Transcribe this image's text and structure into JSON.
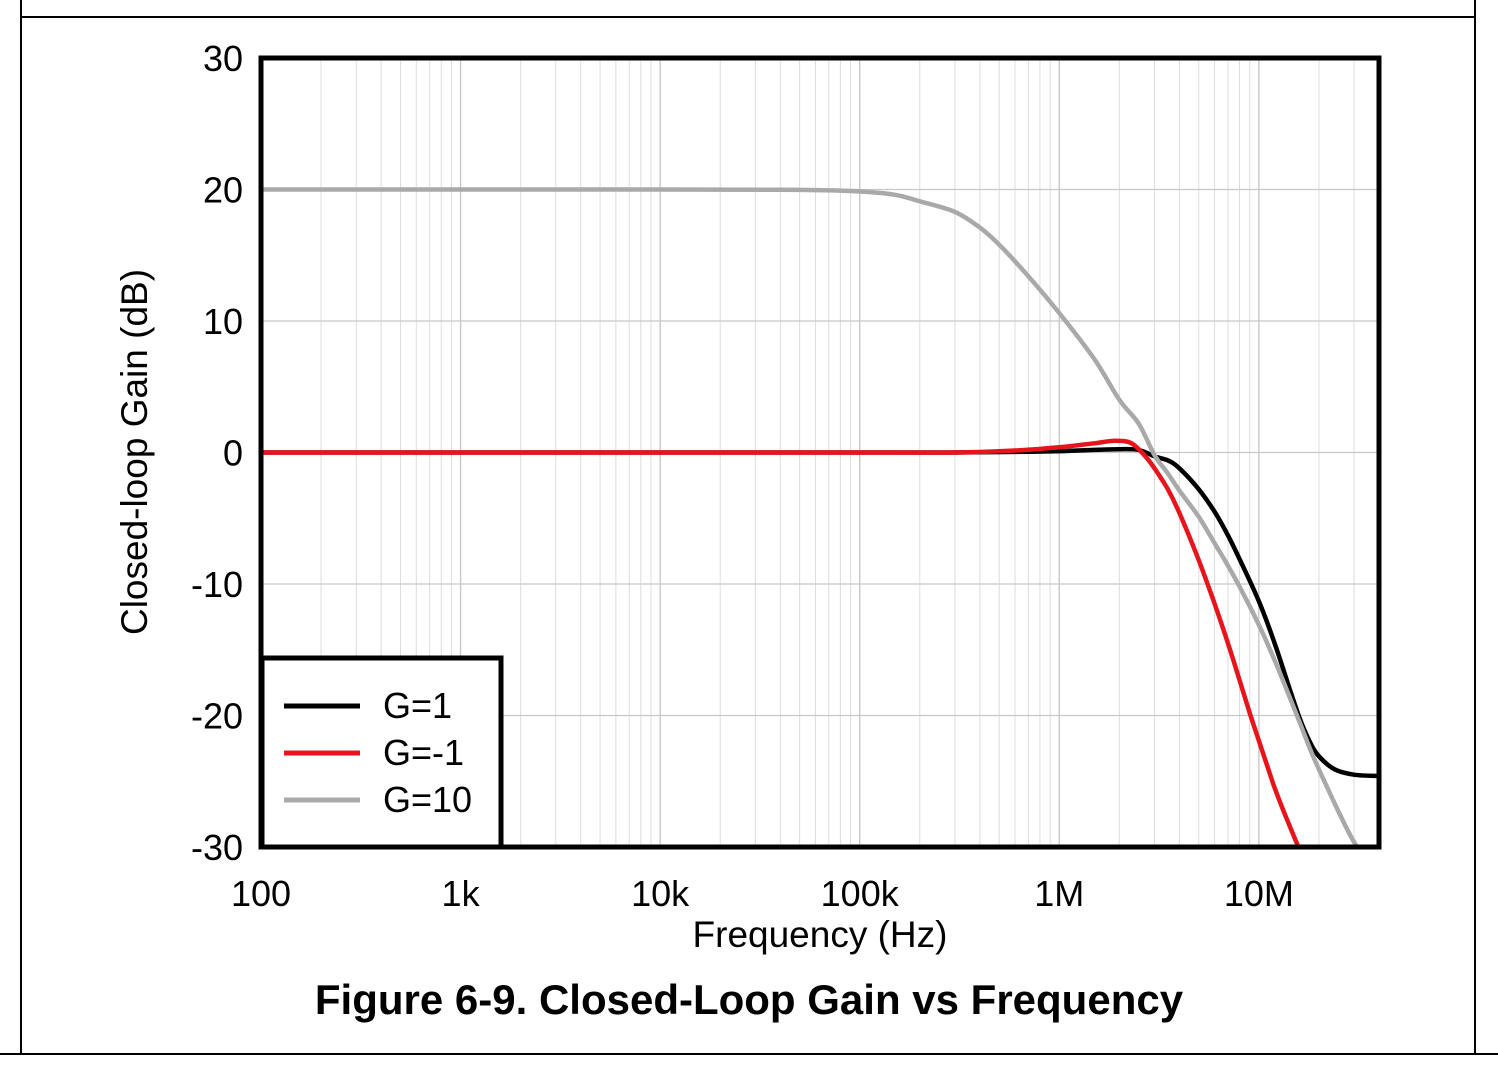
{
  "figure": {
    "caption": "Figure 6-9. Closed-Loop Gain vs Frequency"
  },
  "chart_data": {
    "type": "line",
    "title": "",
    "xlabel": "Frequency (Hz)",
    "ylabel": "Closed-loop Gain (dB)",
    "x_scale": "log",
    "xlim": [
      100,
      40000000
    ],
    "ylim": [
      -30,
      30
    ],
    "x_ticks": [
      {
        "value": 100,
        "label": "100"
      },
      {
        "value": 1000,
        "label": "1k"
      },
      {
        "value": 10000,
        "label": "10k"
      },
      {
        "value": 100000,
        "label": "100k"
      },
      {
        "value": 1000000,
        "label": "1M"
      },
      {
        "value": 10000000,
        "label": "10M"
      }
    ],
    "y_ticks": [
      {
        "value": 30,
        "label": "30"
      },
      {
        "value": 20,
        "label": "20"
      },
      {
        "value": 10,
        "label": "10"
      },
      {
        "value": 0,
        "label": "0"
      },
      {
        "value": -10,
        "label": "-10"
      },
      {
        "value": -20,
        "label": "-20"
      },
      {
        "value": -30,
        "label": "-30"
      }
    ],
    "grid": true,
    "legend": "bottom-left",
    "series": [
      {
        "name": "G=1",
        "color": "#000000",
        "points": [
          [
            100,
            0
          ],
          [
            100000,
            0
          ],
          [
            300000,
            0
          ],
          [
            700000,
            0.05
          ],
          [
            1000000,
            0.1
          ],
          [
            1500000,
            0.2
          ],
          [
            2000000,
            0.25
          ],
          [
            2500000,
            0.2
          ],
          [
            3000000,
            -0.3
          ],
          [
            3500000,
            -0.6
          ],
          [
            4000000,
            -1.2
          ],
          [
            5000000,
            -2.8
          ],
          [
            6000000,
            -4.5
          ],
          [
            7000000,
            -6.3
          ],
          [
            8000000,
            -8.1
          ],
          [
            10000000,
            -11.3
          ],
          [
            12000000,
            -14.5
          ],
          [
            14000000,
            -17.6
          ],
          [
            16000000,
            -20.2
          ],
          [
            18000000,
            -22.0
          ],
          [
            20000000,
            -23.1
          ],
          [
            24000000,
            -24.1
          ],
          [
            30000000,
            -24.5
          ],
          [
            40000000,
            -24.6
          ]
        ]
      },
      {
        "name": "G=-1",
        "color": "#e8141b",
        "points": [
          [
            100,
            0
          ],
          [
            100000,
            0
          ],
          [
            300000,
            0
          ],
          [
            600000,
            0.15
          ],
          [
            1000000,
            0.4
          ],
          [
            1500000,
            0.7
          ],
          [
            1900000,
            0.9
          ],
          [
            2300000,
            0.7
          ],
          [
            2700000,
            -0.3
          ],
          [
            3000000,
            -1.2
          ],
          [
            3500000,
            -2.8
          ],
          [
            4000000,
            -4.6
          ],
          [
            5000000,
            -8.2
          ],
          [
            6000000,
            -11.5
          ],
          [
            7000000,
            -14.5
          ],
          [
            8000000,
            -17.3
          ],
          [
            9000000,
            -19.8
          ],
          [
            10000000,
            -21.9
          ],
          [
            11000000,
            -23.8
          ],
          [
            12000000,
            -25.5
          ],
          [
            13000000,
            -26.9
          ],
          [
            15000000,
            -29.2
          ],
          [
            15800000,
            -30
          ]
        ]
      },
      {
        "name": "G=10",
        "color": "#a9a9a9",
        "points": [
          [
            100,
            20
          ],
          [
            10000,
            20
          ],
          [
            50000,
            19.97
          ],
          [
            100000,
            19.85
          ],
          [
            150000,
            19.6
          ],
          [
            200000,
            19.1
          ],
          [
            300000,
            18.3
          ],
          [
            400000,
            17.1
          ],
          [
            500000,
            15.8
          ],
          [
            700000,
            13.4
          ],
          [
            1000000,
            10.6
          ],
          [
            1500000,
            7.1
          ],
          [
            2000000,
            4.0
          ],
          [
            2500000,
            2.2
          ],
          [
            3000000,
            -0.2
          ],
          [
            3500000,
            -1.6
          ],
          [
            4000000,
            -2.9
          ],
          [
            5000000,
            -4.9
          ],
          [
            6000000,
            -6.9
          ],
          [
            7000000,
            -8.6
          ],
          [
            8000000,
            -10.2
          ],
          [
            10000000,
            -13.1
          ],
          [
            12000000,
            -15.8
          ],
          [
            14000000,
            -18.3
          ],
          [
            16000000,
            -20.5
          ],
          [
            18000000,
            -22.5
          ],
          [
            20000000,
            -24.1
          ],
          [
            24000000,
            -26.7
          ],
          [
            28000000,
            -28.8
          ],
          [
            31000000,
            -30
          ]
        ]
      }
    ]
  }
}
